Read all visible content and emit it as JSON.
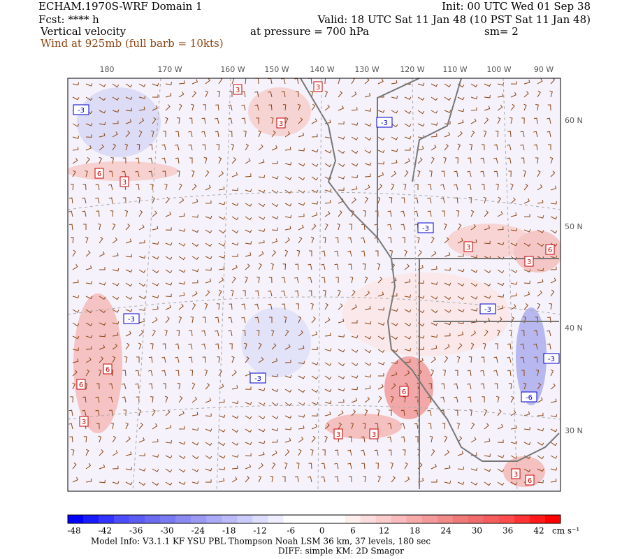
{
  "header": {
    "title": "ECHAM.1970S-WRF Domain 1",
    "init": "Init: 00 UTC Wed 01 Sep 38",
    "fcst": "Fcst: **** h",
    "valid": "Valid: 18 UTC Sat 11 Jan 48 (10 PST Sat 11 Jan 48)",
    "field": "Vertical velocity",
    "pressure": "at pressure =  700 hPa",
    "smoothing": "sm= 2",
    "wind": "Wind at 925mb (full barb = 10kts)"
  },
  "longitude_labels": [
    "180",
    "170 W",
    "160 W",
    "150 W",
    "140 W",
    "130 W",
    "120 W",
    "110 W",
    "100 W",
    "90 W"
  ],
  "latitude_labels": [
    "60 N",
    "50 N",
    "40 N",
    "30 N"
  ],
  "contour_labels": [
    "3",
    "3",
    "3",
    "3",
    "3",
    "3",
    "3",
    "3",
    "3",
    "3",
    "6",
    "6",
    "6",
    "6",
    "6",
    "6",
    "-3",
    "-3",
    "-3",
    "-3",
    "-3",
    "-3",
    "-3",
    "-6"
  ],
  "colorbar": {
    "labels": [
      -48,
      -42,
      -36,
      -30,
      -24,
      -18,
      -12,
      -6,
      0,
      6,
      12,
      18,
      24,
      30,
      36,
      42
    ],
    "units": "cm s⁻¹",
    "colors": [
      "#0000ff",
      "#1a1aff",
      "#3333ff",
      "#4d4dff",
      "#5c5cf5",
      "#6b6bf0",
      "#7a7af0",
      "#8a8af2",
      "#9a9af5",
      "#aaaaf7",
      "#bbbbf9",
      "#ccccfb",
      "#ddddfc",
      "#eeeefe",
      "#ffffff",
      "#ffffff",
      "#ffffff",
      "#ffffff",
      "#feeeee",
      "#fcdddd",
      "#fbcccc",
      "#f9bbbb",
      "#f7aaaa",
      "#f59a9a",
      "#f28a8a",
      "#f07a7a",
      "#f06b6b",
      "#f55c5c",
      "#ff4d4d",
      "#ff3333",
      "#ff1a1a",
      "#ff0000"
    ]
  },
  "footer": {
    "model_info": "Model Info: V3.1.1    KF      YSU PBL   Thompson     Noah LSM  36 km,    37 levels,  180 sec",
    "diff": "DIFF: simple KM: 2D Smagor"
  }
}
